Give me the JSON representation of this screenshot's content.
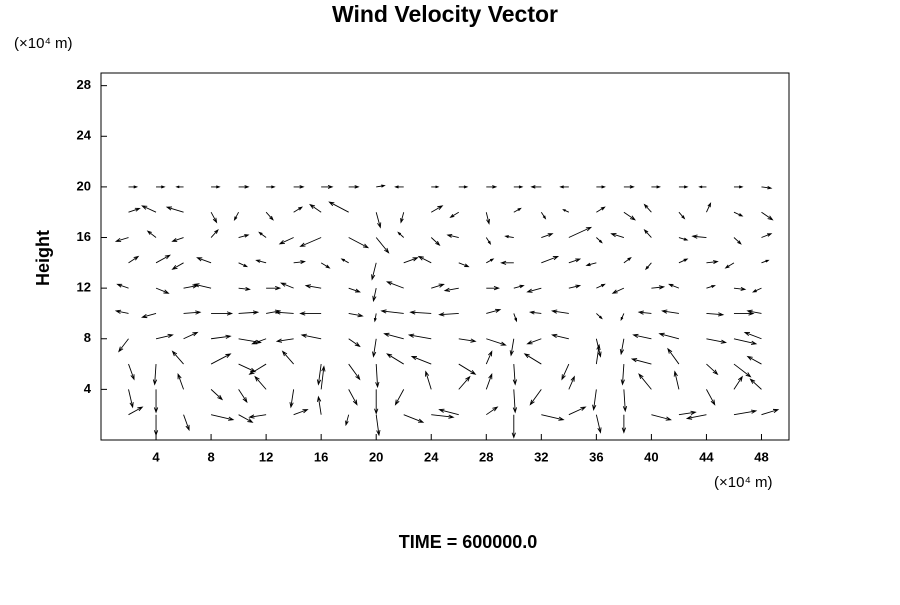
{
  "chart_data": {
    "type": "quiver",
    "title": "Wind Velocity Vector",
    "y_label": "Height",
    "y_unit": "(×10⁴ m)",
    "x_unit": "(×10⁴ m)",
    "annotation": "TIME = 600000.0",
    "color": "#000000",
    "xlim": [
      0,
      50
    ],
    "ylim": [
      0,
      29
    ],
    "xticks": [
      4,
      8,
      12,
      16,
      20,
      24,
      28,
      32,
      36,
      40,
      44,
      48
    ],
    "yticks": [
      4,
      8,
      12,
      16,
      20,
      24,
      28
    ],
    "x": [
      2,
      4,
      6,
      8,
      10,
      12,
      14,
      16,
      18,
      20,
      22,
      24,
      26,
      28,
      30,
      32,
      34,
      36,
      38,
      40,
      42,
      44,
      46,
      48
    ],
    "rows": [
      {
        "y": 20,
        "u": [
          0.6,
          0.6,
          -0.5,
          0.6,
          0.7,
          0.6,
          0.7,
          0.8,
          0.7,
          0.6,
          -0.6,
          0.5,
          0.6,
          0.7,
          0.6,
          -0.7,
          -0.6,
          0.6,
          0.7,
          0.6,
          0.6,
          -0.5,
          0.6,
          0.7
        ],
        "v": [
          0,
          0,
          0,
          0,
          0,
          0,
          0,
          0,
          0,
          0.1,
          0,
          0,
          0,
          0,
          0,
          0,
          0,
          0,
          0,
          0,
          0,
          0,
          0,
          -0.1
        ]
      },
      {
        "y": 18,
        "u": [
          0.8,
          -1.0,
          -1.2,
          0.4,
          -0.3,
          0.5,
          0.6,
          -0.8,
          -1.4,
          0.3,
          -0.2,
          0.8,
          -0.6,
          0.2,
          0.5,
          0.3,
          -0.4,
          0.6,
          0.8,
          -0.5,
          0.4,
          0.3,
          0.6,
          0.8
        ],
        "v": [
          0.3,
          0.5,
          0.4,
          -0.8,
          -0.6,
          -0.6,
          0.4,
          0.6,
          0.8,
          -1.2,
          -0.8,
          0.5,
          -0.4,
          -0.9,
          0.3,
          -0.5,
          0.2,
          0.4,
          -0.6,
          0.6,
          -0.5,
          0.7,
          -0.3,
          -0.6
        ]
      },
      {
        "y": 16,
        "u": [
          -0.9,
          -0.6,
          -0.8,
          0.5,
          0.7,
          -0.5,
          -1.0,
          -1.5,
          1.4,
          0.9,
          -0.4,
          0.6,
          -0.8,
          0.3,
          -0.6,
          0.8,
          1.6,
          0.4,
          -0.9,
          -0.5,
          0.6,
          -1.0,
          0.5,
          0.7
        ],
        "v": [
          -0.3,
          0.5,
          -0.3,
          0.6,
          0.2,
          0.4,
          -0.5,
          -0.7,
          -0.8,
          -1.2,
          0.4,
          -0.6,
          0.2,
          -0.5,
          0.1,
          0.3,
          0.8,
          -0.4,
          0.3,
          0.6,
          -0.2,
          0.1,
          -0.5,
          0.3
        ]
      },
      {
        "y": 14,
        "u": [
          0.7,
          1.0,
          -0.8,
          -1.0,
          0.6,
          -0.7,
          0.8,
          0.6,
          -0.5,
          -0.3,
          1.0,
          -0.9,
          0.7,
          0.5,
          -0.9,
          1.2,
          0.8,
          -0.7,
          0.5,
          -0.4,
          0.6,
          0.8,
          -0.6,
          0.5
        ],
        "v": [
          0.5,
          0.6,
          -0.5,
          0.4,
          -0.3,
          0.2,
          0.1,
          -0.4,
          0.3,
          -1.3,
          0.4,
          0.5,
          -0.3,
          0.3,
          0.0,
          0.5,
          0.3,
          -0.2,
          0.4,
          -0.5,
          0.3,
          0.1,
          -0.4,
          0.2
        ]
      },
      {
        "y": 12,
        "u": [
          -0.8,
          0.9,
          1.0,
          -1.2,
          0.8,
          1.0,
          -0.9,
          -1.1,
          0.8,
          -0.2,
          -1.2,
          0.9,
          -1.0,
          0.9,
          0.7,
          -1.0,
          0.8,
          0.6,
          -0.8,
          0.9,
          -0.7,
          0.6,
          0.8,
          -0.6
        ],
        "v": [
          0.3,
          -0.4,
          0.2,
          0.3,
          -0.1,
          0.0,
          0.4,
          0.2,
          -0.3,
          -1.0,
          0.5,
          0.3,
          -0.2,
          0.0,
          0.2,
          -0.3,
          0.2,
          0.3,
          -0.4,
          0.1,
          0.3,
          0.2,
          -0.1,
          -0.3
        ]
      },
      {
        "y": 10,
        "u": [
          -0.9,
          -1.0,
          1.2,
          1.5,
          1.4,
          1.0,
          -1.3,
          -1.5,
          1.0,
          -0.1,
          -1.6,
          -1.5,
          -1.4,
          1.0,
          0.2,
          -0.8,
          -1.2,
          0.4,
          -0.2,
          -0.9,
          -1.2,
          1.2,
          1.4,
          -1.0
        ],
        "v": [
          0.2,
          -0.3,
          0.1,
          0.0,
          0.1,
          0.2,
          0.1,
          0.0,
          -0.2,
          -0.6,
          0.2,
          0.1,
          -0.1,
          0.3,
          -0.6,
          0.1,
          0.2,
          -0.4,
          -0.5,
          0.1,
          0.2,
          -0.1,
          0.0,
          0.2
        ]
      },
      {
        "y": 8,
        "u": [
          -0.7,
          1.2,
          1.0,
          1.4,
          1.6,
          -1.0,
          -1.2,
          -1.4,
          0.8,
          -0.2,
          -1.4,
          -1.6,
          1.2,
          1.4,
          -0.2,
          -1.0,
          -1.2,
          0.3,
          -0.2,
          -1.3,
          -1.4,
          1.4,
          1.6,
          -1.2
        ],
        "v": [
          -1.0,
          0.3,
          0.5,
          0.2,
          -0.3,
          -0.4,
          -0.2,
          0.3,
          -0.6,
          -1.4,
          0.4,
          0.3,
          -0.2,
          -0.5,
          -1.3,
          -0.4,
          0.3,
          -1.4,
          -1.2,
          0.3,
          0.4,
          -0.3,
          -0.4,
          0.5
        ]
      },
      {
        "y": 6,
        "u": [
          0.4,
          -0.1,
          -0.8,
          1.4,
          1.2,
          -1.2,
          -0.8,
          -0.2,
          0.8,
          0.1,
          -1.2,
          -1.4,
          1.2,
          0.4,
          0.1,
          -1.2,
          -0.5,
          0.2,
          -0.1,
          -1.4,
          -0.8,
          0.8,
          1.2,
          -1.0
        ],
        "v": [
          -1.2,
          -1.6,
          1.0,
          0.8,
          -0.6,
          -0.8,
          1.0,
          -1.6,
          -1.2,
          -1.8,
          0.8,
          0.6,
          -0.8,
          1.0,
          -1.6,
          0.8,
          -1.2,
          1.5,
          -1.6,
          0.4,
          1.2,
          -0.8,
          -1.0,
          0.6
        ]
      },
      {
        "y": 4,
        "u": [
          0.3,
          0.0,
          -0.4,
          0.8,
          0.6,
          -0.8,
          -0.2,
          0.2,
          0.6,
          0.0,
          -0.6,
          -0.4,
          0.8,
          0.4,
          0.1,
          -0.8,
          0.4,
          -0.2,
          0.1,
          -0.9,
          -0.3,
          0.6,
          0.6,
          -0.8
        ],
        "v": [
          -1.4,
          -1.8,
          1.2,
          -0.8,
          -1.0,
          1.0,
          -1.4,
          1.8,
          -1.2,
          -1.9,
          -1.2,
          1.4,
          1.0,
          1.2,
          -1.8,
          -1.2,
          1.0,
          -1.6,
          -1.7,
          1.2,
          1.4,
          -1.2,
          1.0,
          0.8
        ]
      },
      {
        "y": 2,
        "u": [
          1.0,
          0.0,
          0.4,
          1.6,
          1.0,
          -1.2,
          1.0,
          -0.2,
          -0.2,
          0.2,
          1.4,
          1.6,
          -1.4,
          0.8,
          0.0,
          1.6,
          1.2,
          0.3,
          0.0,
          1.4,
          1.2,
          -1.4,
          1.6,
          1.2
        ],
        "v": [
          0.6,
          -1.6,
          -1.2,
          -0.4,
          -0.6,
          -0.2,
          0.4,
          1.4,
          -0.8,
          -1.6,
          -0.6,
          -0.2,
          0.4,
          0.6,
          -1.8,
          -0.4,
          0.6,
          -1.4,
          -1.4,
          -0.4,
          0.2,
          -0.3,
          0.3,
          0.4
        ]
      }
    ]
  }
}
